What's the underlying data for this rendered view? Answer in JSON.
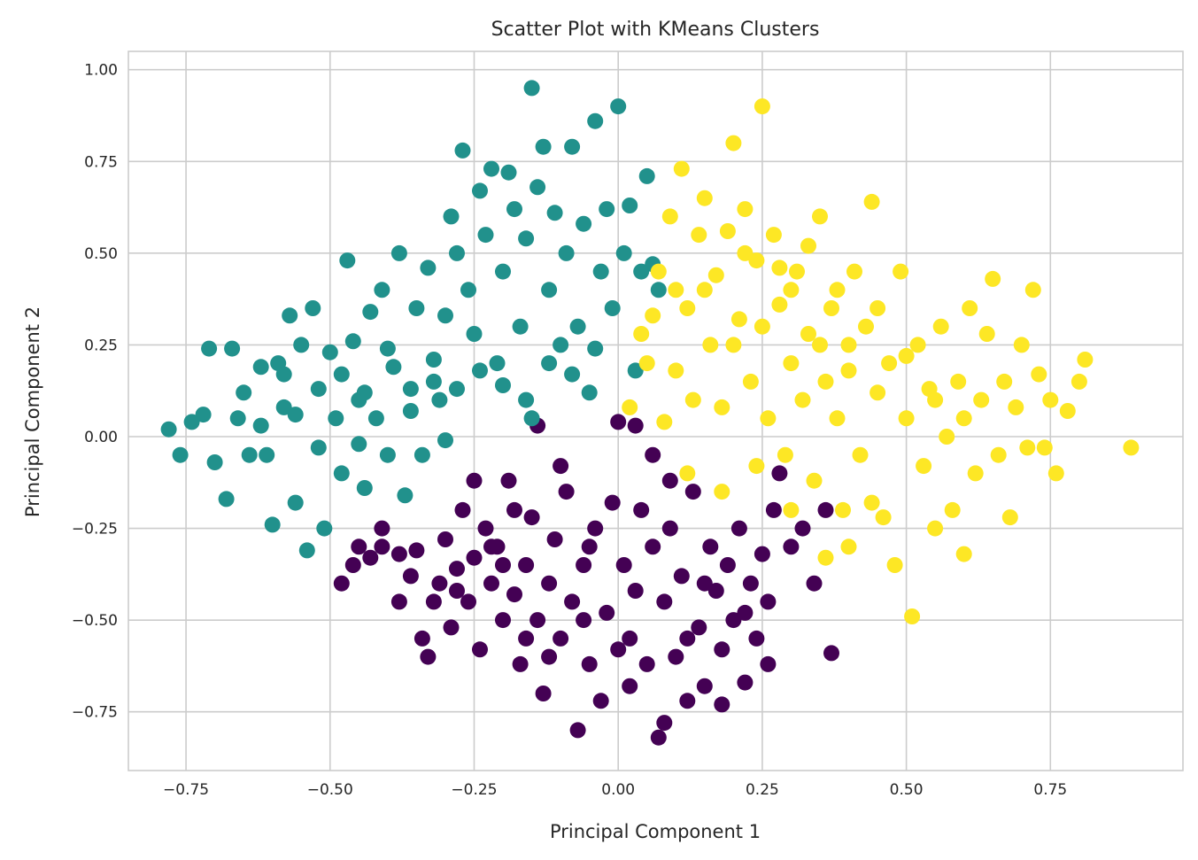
{
  "chart_data": {
    "type": "scatter",
    "title": "Scatter Plot with KMeans Clusters",
    "xlabel": "Principal Component 1",
    "ylabel": "Principal Component 2",
    "xlim": [
      -0.85,
      0.98
    ],
    "ylim": [
      -0.91,
      1.05
    ],
    "xticks": [
      -0.75,
      -0.5,
      -0.25,
      0.0,
      0.25,
      0.5,
      0.75
    ],
    "xtick_labels": [
      "−0.75",
      "−0.50",
      "−0.25",
      "0.00",
      "0.25",
      "0.50",
      "0.75"
    ],
    "yticks": [
      -0.75,
      -0.5,
      -0.25,
      0.0,
      0.25,
      0.5,
      0.75,
      1.0
    ],
    "ytick_labels": [
      "−0.75",
      "−0.50",
      "−0.25",
      "0.00",
      "0.25",
      "0.50",
      "0.75",
      "1.00"
    ],
    "grid": true,
    "colors": {
      "cluster_0": "#440154",
      "cluster_1": "#21918c",
      "cluster_2": "#fde725"
    },
    "series": [
      {
        "color": "#440154",
        "points": [
          [
            -0.48,
            -0.4
          ],
          [
            -0.46,
            -0.35
          ],
          [
            -0.45,
            -0.3
          ],
          [
            -0.43,
            -0.33
          ],
          [
            -0.41,
            -0.3
          ],
          [
            -0.38,
            -0.45
          ],
          [
            -0.36,
            -0.38
          ],
          [
            -0.35,
            -0.31
          ],
          [
            -0.34,
            -0.55
          ],
          [
            -0.33,
            -0.6
          ],
          [
            -0.32,
            -0.45
          ],
          [
            -0.31,
            -0.4
          ],
          [
            -0.3,
            -0.28
          ],
          [
            -0.29,
            -0.52
          ],
          [
            -0.28,
            -0.36
          ],
          [
            -0.27,
            -0.2
          ],
          [
            -0.26,
            -0.45
          ],
          [
            -0.25,
            -0.33
          ],
          [
            -0.24,
            -0.58
          ],
          [
            -0.23,
            -0.25
          ],
          [
            -0.22,
            -0.4
          ],
          [
            -0.21,
            -0.3
          ],
          [
            -0.2,
            -0.5
          ],
          [
            -0.19,
            -0.12
          ],
          [
            -0.18,
            -0.43
          ],
          [
            -0.17,
            -0.62
          ],
          [
            -0.16,
            -0.35
          ],
          [
            -0.15,
            -0.22
          ],
          [
            -0.14,
            -0.5
          ],
          [
            -0.13,
            -0.7
          ],
          [
            -0.12,
            -0.4
          ],
          [
            -0.11,
            -0.28
          ],
          [
            -0.1,
            -0.55
          ],
          [
            -0.09,
            -0.15
          ],
          [
            -0.08,
            -0.45
          ],
          [
            -0.07,
            -0.8
          ],
          [
            -0.06,
            -0.35
          ],
          [
            -0.05,
            -0.62
          ],
          [
            -0.04,
            -0.25
          ],
          [
            -0.03,
            -0.72
          ],
          [
            -0.02,
            -0.48
          ],
          [
            -0.01,
            -0.18
          ],
          [
            0.0,
            -0.58
          ],
          [
            0.01,
            -0.35
          ],
          [
            0.02,
            -0.55
          ],
          [
            0.03,
            -0.42
          ],
          [
            0.04,
            -0.2
          ],
          [
            0.05,
            -0.62
          ],
          [
            0.06,
            -0.3
          ],
          [
            0.07,
            -0.82
          ],
          [
            0.08,
            -0.45
          ],
          [
            0.09,
            -0.25
          ],
          [
            0.1,
            -0.6
          ],
          [
            0.11,
            -0.38
          ],
          [
            0.12,
            -0.72
          ],
          [
            0.13,
            -0.15
          ],
          [
            0.14,
            -0.52
          ],
          [
            0.15,
            -0.68
          ],
          [
            0.16,
            -0.3
          ],
          [
            0.17,
            -0.42
          ],
          [
            0.18,
            -0.73
          ],
          [
            0.19,
            -0.35
          ],
          [
            0.2,
            -0.5
          ],
          [
            0.21,
            -0.25
          ],
          [
            0.22,
            -0.67
          ],
          [
            0.23,
            -0.4
          ],
          [
            0.24,
            -0.55
          ],
          [
            0.25,
            -0.32
          ],
          [
            0.26,
            -0.45
          ],
          [
            0.27,
            -0.2
          ],
          [
            0.28,
            -0.1
          ],
          [
            0.3,
            -0.3
          ],
          [
            0.32,
            -0.25
          ],
          [
            0.34,
            -0.4
          ],
          [
            0.36,
            -0.2
          ],
          [
            0.37,
            -0.59
          ],
          [
            -0.41,
            -0.25
          ],
          [
            -0.38,
            -0.32
          ],
          [
            -0.28,
            -0.42
          ],
          [
            -0.2,
            -0.35
          ],
          [
            -0.16,
            -0.55
          ],
          [
            -0.12,
            -0.6
          ],
          [
            -0.06,
            -0.5
          ],
          [
            0.02,
            -0.68
          ],
          [
            0.08,
            -0.78
          ],
          [
            0.12,
            -0.55
          ],
          [
            0.15,
            -0.4
          ],
          [
            0.18,
            -0.58
          ],
          [
            0.22,
            -0.48
          ],
          [
            0.26,
            -0.62
          ],
          [
            -0.25,
            -0.12
          ],
          [
            -0.22,
            -0.3
          ],
          [
            -0.18,
            -0.2
          ],
          [
            -0.14,
            0.03
          ],
          [
            -0.1,
            -0.08
          ],
          [
            -0.05,
            -0.3
          ],
          [
            0.0,
            0.04
          ],
          [
            0.03,
            0.03
          ],
          [
            0.06,
            -0.05
          ],
          [
            0.09,
            -0.12
          ]
        ]
      },
      {
        "color": "#21918c",
        "points": [
          [
            -0.78,
            0.02
          ],
          [
            -0.76,
            -0.05
          ],
          [
            -0.74,
            0.04
          ],
          [
            -0.72,
            0.06
          ],
          [
            -0.71,
            0.24
          ],
          [
            -0.7,
            -0.07
          ],
          [
            -0.68,
            -0.17
          ],
          [
            -0.67,
            0.24
          ],
          [
            -0.66,
            0.05
          ],
          [
            -0.65,
            0.12
          ],
          [
            -0.64,
            -0.05
          ],
          [
            -0.62,
            0.19
          ],
          [
            -0.61,
            -0.05
          ],
          [
            -0.6,
            -0.24
          ],
          [
            -0.59,
            0.2
          ],
          [
            -0.58,
            0.08
          ],
          [
            -0.57,
            0.33
          ],
          [
            -0.56,
            -0.18
          ],
          [
            -0.55,
            0.25
          ],
          [
            -0.54,
            -0.31
          ],
          [
            -0.53,
            0.35
          ],
          [
            -0.52,
            -0.03
          ],
          [
            -0.51,
            -0.25
          ],
          [
            -0.5,
            0.23
          ],
          [
            -0.49,
            0.05
          ],
          [
            -0.48,
            -0.1
          ],
          [
            -0.47,
            0.48
          ],
          [
            -0.46,
            0.26
          ],
          [
            -0.45,
            0.1
          ],
          [
            -0.44,
            -0.14
          ],
          [
            -0.43,
            0.34
          ],
          [
            -0.42,
            0.05
          ],
          [
            -0.41,
            0.4
          ],
          [
            -0.4,
            -0.05
          ],
          [
            -0.39,
            0.19
          ],
          [
            -0.38,
            0.5
          ],
          [
            -0.37,
            -0.16
          ],
          [
            -0.36,
            0.07
          ],
          [
            -0.35,
            0.35
          ],
          [
            -0.34,
            -0.05
          ],
          [
            -0.33,
            0.46
          ],
          [
            -0.32,
            0.21
          ],
          [
            -0.31,
            0.1
          ],
          [
            -0.3,
            0.33
          ],
          [
            -0.29,
            0.6
          ],
          [
            -0.28,
            0.5
          ],
          [
            -0.27,
            0.78
          ],
          [
            -0.26,
            0.4
          ],
          [
            -0.25,
            0.28
          ],
          [
            -0.24,
            0.67
          ],
          [
            -0.23,
            0.55
          ],
          [
            -0.22,
            0.73
          ],
          [
            -0.21,
            0.2
          ],
          [
            -0.2,
            0.45
          ],
          [
            -0.19,
            0.72
          ],
          [
            -0.18,
            0.62
          ],
          [
            -0.17,
            0.3
          ],
          [
            -0.16,
            0.54
          ],
          [
            -0.15,
            0.95
          ],
          [
            -0.14,
            0.68
          ],
          [
            -0.13,
            0.79
          ],
          [
            -0.12,
            0.4
          ],
          [
            -0.11,
            0.61
          ],
          [
            -0.1,
            0.25
          ],
          [
            -0.09,
            0.5
          ],
          [
            -0.08,
            0.79
          ],
          [
            -0.07,
            0.3
          ],
          [
            -0.06,
            0.58
          ],
          [
            -0.05,
            0.12
          ],
          [
            -0.04,
            0.86
          ],
          [
            -0.03,
            0.45
          ],
          [
            -0.02,
            0.62
          ],
          [
            -0.01,
            0.35
          ],
          [
            0.0,
            0.9
          ],
          [
            0.01,
            0.5
          ],
          [
            0.02,
            0.63
          ],
          [
            0.03,
            0.18
          ],
          [
            0.04,
            0.45
          ],
          [
            0.05,
            0.71
          ],
          [
            0.06,
            0.47
          ],
          [
            0.07,
            0.4
          ],
          [
            -0.58,
            0.17
          ],
          [
            -0.56,
            0.06
          ],
          [
            -0.52,
            0.13
          ],
          [
            -0.48,
            0.17
          ],
          [
            -0.44,
            0.12
          ],
          [
            -0.4,
            0.24
          ],
          [
            -0.36,
            0.13
          ],
          [
            -0.32,
            0.15
          ],
          [
            -0.28,
            0.13
          ],
          [
            -0.24,
            0.18
          ],
          [
            -0.2,
            0.14
          ],
          [
            -0.16,
            0.1
          ],
          [
            -0.12,
            0.2
          ],
          [
            -0.08,
            0.17
          ],
          [
            -0.04,
            0.24
          ],
          [
            -0.62,
            0.03
          ],
          [
            -0.45,
            -0.02
          ],
          [
            -0.3,
            -0.01
          ],
          [
            -0.15,
            0.05
          ]
        ]
      },
      {
        "color": "#fde725",
        "points": [
          [
            0.02,
            0.08
          ],
          [
            0.04,
            0.28
          ],
          [
            0.05,
            0.2
          ],
          [
            0.06,
            0.33
          ],
          [
            0.07,
            0.45
          ],
          [
            0.08,
            0.04
          ],
          [
            0.09,
            0.6
          ],
          [
            0.1,
            0.18
          ],
          [
            0.11,
            0.73
          ],
          [
            0.12,
            0.35
          ],
          [
            0.13,
            0.1
          ],
          [
            0.14,
            0.55
          ],
          [
            0.15,
            0.65
          ],
          [
            0.16,
            0.25
          ],
          [
            0.17,
            0.44
          ],
          [
            0.18,
            0.08
          ],
          [
            0.19,
            0.56
          ],
          [
            0.2,
            0.8
          ],
          [
            0.21,
            0.32
          ],
          [
            0.22,
            0.62
          ],
          [
            0.23,
            0.15
          ],
          [
            0.24,
            0.48
          ],
          [
            0.25,
            0.9
          ],
          [
            0.26,
            0.05
          ],
          [
            0.27,
            0.55
          ],
          [
            0.28,
            0.36
          ],
          [
            0.29,
            -0.05
          ],
          [
            0.3,
            0.2
          ],
          [
            0.31,
            0.45
          ],
          [
            0.32,
            0.1
          ],
          [
            0.33,
            0.28
          ],
          [
            0.34,
            -0.12
          ],
          [
            0.35,
            0.6
          ],
          [
            0.36,
            0.15
          ],
          [
            0.37,
            0.35
          ],
          [
            0.38,
            0.05
          ],
          [
            0.39,
            -0.2
          ],
          [
            0.4,
            0.25
          ],
          [
            0.41,
            0.45
          ],
          [
            0.42,
            -0.05
          ],
          [
            0.43,
            0.3
          ],
          [
            0.44,
            0.64
          ],
          [
            0.45,
            0.12
          ],
          [
            0.46,
            -0.22
          ],
          [
            0.47,
            0.2
          ],
          [
            0.48,
            -0.35
          ],
          [
            0.49,
            0.45
          ],
          [
            0.5,
            0.05
          ],
          [
            0.51,
            -0.49
          ],
          [
            0.52,
            0.25
          ],
          [
            0.53,
            -0.08
          ],
          [
            0.54,
            0.13
          ],
          [
            0.55,
            -0.25
          ],
          [
            0.56,
            0.3
          ],
          [
            0.57,
            0.0
          ],
          [
            0.58,
            -0.2
          ],
          [
            0.59,
            0.15
          ],
          [
            0.6,
            -0.32
          ],
          [
            0.61,
            0.35
          ],
          [
            0.62,
            -0.1
          ],
          [
            0.63,
            0.1
          ],
          [
            0.64,
            0.28
          ],
          [
            0.65,
            0.43
          ],
          [
            0.66,
            -0.05
          ],
          [
            0.67,
            0.15
          ],
          [
            0.68,
            -0.22
          ],
          [
            0.69,
            0.08
          ],
          [
            0.7,
            0.25
          ],
          [
            0.71,
            -0.03
          ],
          [
            0.72,
            0.4
          ],
          [
            0.73,
            0.17
          ],
          [
            0.74,
            -0.03
          ],
          [
            0.75,
            0.1
          ],
          [
            0.76,
            -0.1
          ],
          [
            0.78,
            0.07
          ],
          [
            0.8,
            0.15
          ],
          [
            0.81,
            0.21
          ],
          [
            0.89,
            -0.03
          ],
          [
            0.15,
            0.4
          ],
          [
            0.2,
            0.25
          ],
          [
            0.25,
            0.3
          ],
          [
            0.3,
            0.4
          ],
          [
            0.35,
            0.25
          ],
          [
            0.4,
            0.18
          ],
          [
            0.45,
            0.35
          ],
          [
            0.5,
            0.22
          ],
          [
            0.55,
            0.1
          ],
          [
            0.6,
            0.05
          ],
          [
            0.12,
            -0.1
          ],
          [
            0.18,
            -0.15
          ],
          [
            0.24,
            -0.08
          ],
          [
            0.3,
            -0.2
          ],
          [
            0.36,
            -0.33
          ],
          [
            0.4,
            -0.3
          ],
          [
            0.44,
            -0.18
          ],
          [
            0.22,
            0.5
          ],
          [
            0.28,
            0.46
          ],
          [
            0.33,
            0.52
          ],
          [
            0.38,
            0.4
          ],
          [
            0.1,
            0.4
          ]
        ]
      }
    ]
  }
}
